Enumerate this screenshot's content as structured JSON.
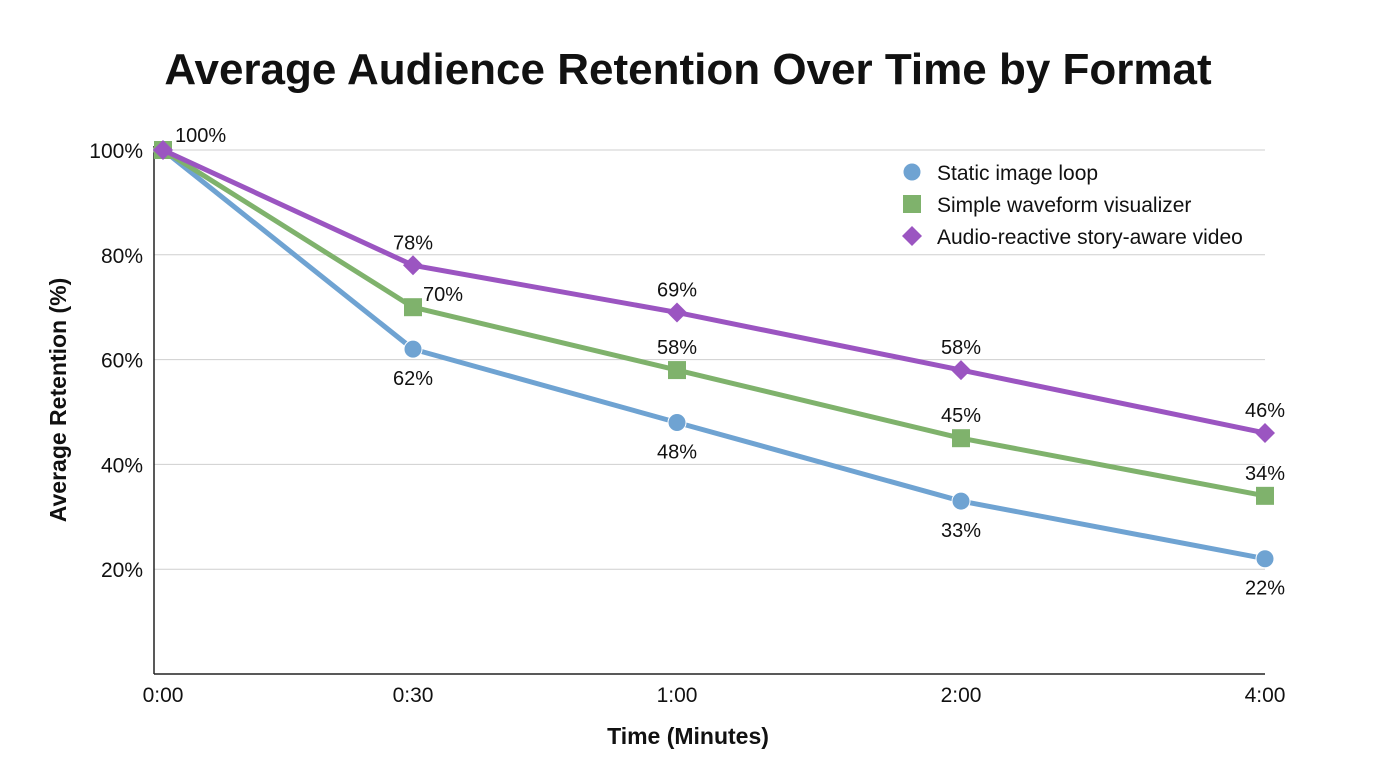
{
  "chart_data": {
    "type": "line",
    "title": "Average Audience Retention Over Time by Format",
    "xlabel": "Time (Minutes)",
    "ylabel": "Average Retention (%)",
    "categories": [
      "0:00",
      "0:30",
      "1:00",
      "2:00",
      "4:00"
    ],
    "ylim": [
      0,
      100
    ],
    "yticks": [
      20,
      40,
      60,
      80,
      100
    ],
    "ytick_labels": [
      "20%",
      "40%",
      "60%",
      "80%",
      "100%"
    ],
    "grid": true,
    "legend_position": "top-right",
    "series": [
      {
        "name": "Static image loop",
        "marker": "circle",
        "color": "#6fa3d2",
        "values": [
          100,
          62,
          48,
          33,
          22
        ],
        "labels": [
          "",
          "62%",
          "48%",
          "33%",
          "22%"
        ],
        "label_position": [
          "",
          "below",
          "below",
          "below",
          "below"
        ]
      },
      {
        "name": "Simple waveform visualizer",
        "marker": "square",
        "color": "#7fb26c",
        "values": [
          100,
          70,
          58,
          45,
          34
        ],
        "labels": [
          "",
          "70%",
          "58%",
          "45%",
          "34%"
        ],
        "label_position": [
          "",
          "above-right",
          "above",
          "above",
          "above"
        ]
      },
      {
        "name": "Audio-reactive story-aware video",
        "marker": "diamond",
        "color": "#9b55c1",
        "values": [
          100,
          78,
          69,
          58,
          46
        ],
        "labels": [
          "100%",
          "78%",
          "69%",
          "58%",
          "46%"
        ],
        "label_position": [
          "above-right",
          "above",
          "above",
          "above",
          "above"
        ]
      }
    ]
  }
}
